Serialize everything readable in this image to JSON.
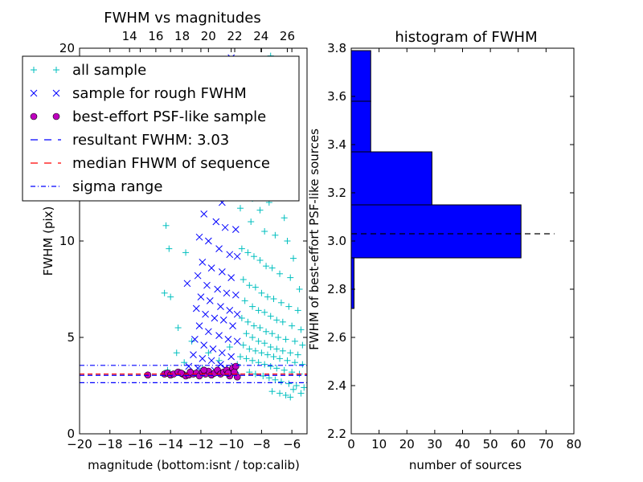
{
  "chart_data": [
    {
      "type": "scatter",
      "title": "FWHM vs magnitudes",
      "xlabel": "magnitude (bottom:isnt / top:calib)",
      "ylabel": "FWHM (pix)",
      "xlim": [
        -20,
        -5
      ],
      "ylim": [
        0,
        20
      ],
      "x_ticks": [
        -20,
        -18,
        -16,
        -14,
        -12,
        -10,
        -8,
        -6
      ],
      "x_tick_labels": [
        "−20",
        "−18",
        "−16",
        "−14",
        "−12",
        "−10",
        "−8",
        "−6"
      ],
      "y_ticks": [
        0,
        5,
        10,
        20
      ],
      "y_tick_labels": [
        "0",
        "5",
        "10",
        "20"
      ],
      "top_axis": {
        "ticks": [
          14,
          16,
          18,
          20,
          22,
          24,
          26
        ],
        "tick_labels": [
          "14",
          "16",
          "18",
          "20",
          "22",
          "24",
          "26"
        ],
        "xlim": [
          10.2,
          27.5
        ]
      },
      "legend": {
        "placement": "upper-left",
        "entries": [
          {
            "label": "all sample",
            "marker": "+",
            "color": "#00bfbf"
          },
          {
            "label": "sample for rough FWHM",
            "marker": "x",
            "color": "#0000ff"
          },
          {
            "label": "best-effort PSF-like sample",
            "marker": "o",
            "color": "#bf00bf"
          },
          {
            "label": "resultant FWHM: 3.03",
            "marker": "dashed-line",
            "color": "#0000ff"
          },
          {
            "label": "median FHWM of sequence",
            "marker": "dashed-line",
            "color": "#ff0000"
          },
          {
            "label": "sigma range",
            "marker": "dashdot-line",
            "color": "#0000ff"
          }
        ]
      },
      "lines": [
        {
          "name": "resultant FWHM: 3.03",
          "y": 3.03,
          "style": "dashed",
          "color": "#0000ff"
        },
        {
          "name": "median FHWM of sequence",
          "y": 3.1,
          "style": "dashed",
          "color": "#ff0000"
        },
        {
          "name": "sigma range",
          "y": 3.55,
          "style": "dashdot",
          "color": "#0000ff"
        },
        {
          "name": "sigma range",
          "y": 2.65,
          "style": "dashdot",
          "color": "#0000ff"
        }
      ],
      "series": [
        {
          "name": "all sample",
          "marker": "+",
          "color": "#00bfbf",
          "points": [
            [
              -14.3,
              10.8
            ],
            [
              -14.1,
              9.6
            ],
            [
              -14.4,
              7.3
            ],
            [
              -14.0,
              7.1
            ],
            [
              -13.5,
              5.5
            ],
            [
              -13.6,
              4.2
            ],
            [
              -13.0,
              9.4
            ],
            [
              -12.6,
              4.8
            ],
            [
              -14.2,
              3.3
            ],
            [
              -13.1,
              3.7
            ],
            [
              -11.9,
              3.4
            ],
            [
              -11.5,
              4.2
            ],
            [
              -10.8,
              3.8
            ],
            [
              -10.1,
              4.5
            ],
            [
              -9.6,
              3.6
            ],
            [
              -9.1,
              19.0
            ],
            [
              -8.7,
              18.4
            ],
            [
              -8.3,
              17.4
            ],
            [
              -7.4,
              19.6
            ],
            [
              -7.0,
              20.2
            ],
            [
              -6.6,
              19.0
            ],
            [
              -7.9,
              16.0
            ],
            [
              -9.0,
              13.9
            ],
            [
              -8.2,
              13.0
            ],
            [
              -6.9,
              12.6
            ],
            [
              -9.4,
              11.7
            ],
            [
              -8.7,
              11.0
            ],
            [
              -7.8,
              10.5
            ],
            [
              -7.1,
              10.3
            ],
            [
              -6.3,
              10.0
            ],
            [
              -9.3,
              9.6
            ],
            [
              -8.9,
              9.4
            ],
            [
              -8.5,
              9.2
            ],
            [
              -8.1,
              9.0
            ],
            [
              -7.7,
              8.7
            ],
            [
              -7.3,
              8.6
            ],
            [
              -6.8,
              8.3
            ],
            [
              -6.1,
              8.1
            ],
            [
              -9.2,
              8.0
            ],
            [
              -8.8,
              7.7
            ],
            [
              -8.4,
              7.6
            ],
            [
              -8.0,
              7.3
            ],
            [
              -7.6,
              7.1
            ],
            [
              -7.2,
              7.0
            ],
            [
              -6.7,
              6.8
            ],
            [
              -6.2,
              6.6
            ],
            [
              -5.6,
              6.4
            ],
            [
              -9.1,
              6.9
            ],
            [
              -8.6,
              6.6
            ],
            [
              -8.2,
              6.4
            ],
            [
              -7.8,
              6.3
            ],
            [
              -7.4,
              6.1
            ],
            [
              -7.0,
              5.9
            ],
            [
              -6.6,
              5.8
            ],
            [
              -6.0,
              5.6
            ],
            [
              -5.4,
              5.4
            ],
            [
              -9.3,
              6.0
            ],
            [
              -8.9,
              5.8
            ],
            [
              -8.5,
              5.6
            ],
            [
              -8.1,
              5.5
            ],
            [
              -7.7,
              5.3
            ],
            [
              -7.3,
              5.2
            ],
            [
              -6.9,
              5.0
            ],
            [
              -6.4,
              4.9
            ],
            [
              -5.8,
              4.8
            ],
            [
              -5.3,
              4.6
            ],
            [
              -9.0,
              5.2
            ],
            [
              -8.6,
              5.0
            ],
            [
              -8.2,
              4.8
            ],
            [
              -7.8,
              4.7
            ],
            [
              -7.4,
              4.5
            ],
            [
              -7.0,
              4.4
            ],
            [
              -6.6,
              4.3
            ],
            [
              -6.1,
              4.2
            ],
            [
              -5.6,
              4.1
            ],
            [
              -9.2,
              4.6
            ],
            [
              -8.8,
              4.4
            ],
            [
              -8.4,
              4.3
            ],
            [
              -8.0,
              4.2
            ],
            [
              -7.6,
              4.1
            ],
            [
              -7.2,
              4.0
            ],
            [
              -6.8,
              3.9
            ],
            [
              -6.3,
              3.8
            ],
            [
              -5.8,
              3.7
            ],
            [
              -5.3,
              3.6
            ],
            [
              -9.4,
              4.0
            ],
            [
              -9.0,
              3.9
            ],
            [
              -8.6,
              3.8
            ],
            [
              -8.2,
              3.7
            ],
            [
              -7.8,
              3.6
            ],
            [
              -7.4,
              3.5
            ],
            [
              -7.0,
              3.4
            ],
            [
              -6.5,
              3.3
            ],
            [
              -6.0,
              3.2
            ],
            [
              -5.5,
              3.1
            ],
            [
              -8.8,
              3.2
            ],
            [
              -8.4,
              3.1
            ],
            [
              -7.9,
              3.0
            ],
            [
              -7.5,
              2.9
            ],
            [
              -7.1,
              2.8
            ],
            [
              -6.7,
              2.7
            ],
            [
              -6.2,
              2.6
            ],
            [
              -5.7,
              2.5
            ],
            [
              -5.2,
              2.4
            ],
            [
              -7.3,
              2.2
            ],
            [
              -6.8,
              2.1
            ],
            [
              -6.4,
              2.0
            ],
            [
              -5.9,
              2.3
            ],
            [
              -5.4,
              2.1
            ],
            [
              -6.1,
              1.9
            ],
            [
              -8.6,
              12.2
            ],
            [
              -8.1,
              11.6
            ],
            [
              -7.5,
              12.0
            ],
            [
              -6.5,
              11.2
            ],
            [
              -5.9,
              9.1
            ],
            [
              -5.5,
              7.5
            ],
            [
              -9.4,
              14.6
            ],
            [
              -7.7,
              14.2
            ],
            [
              -6.3,
              13.5
            ],
            [
              -8.9,
              16.6
            ]
          ]
        },
        {
          "name": "sample for rough FWHM",
          "marker": "x",
          "color": "#0000ff",
          "points": [
            [
              -11.6,
              17.2
            ],
            [
              -11.3,
              17.0
            ],
            [
              -11.0,
              16.9
            ],
            [
              -11.1,
              15.6
            ],
            [
              -10.3,
              19.2
            ],
            [
              -10.0,
              19.5
            ],
            [
              -9.8,
              18.1
            ],
            [
              -10.5,
              16.3
            ],
            [
              -9.9,
              15.9
            ],
            [
              -11.4,
              14.1
            ],
            [
              -10.7,
              13.6
            ],
            [
              -10.2,
              14.4
            ],
            [
              -12.0,
              12.9
            ],
            [
              -11.2,
              12.4
            ],
            [
              -10.6,
              12.0
            ],
            [
              -10.0,
              12.8
            ],
            [
              -11.8,
              11.4
            ],
            [
              -11.0,
              11.0
            ],
            [
              -10.4,
              10.7
            ],
            [
              -9.7,
              10.6
            ],
            [
              -12.1,
              10.2
            ],
            [
              -11.5,
              10.0
            ],
            [
              -10.8,
              9.6
            ],
            [
              -10.1,
              9.3
            ],
            [
              -9.6,
              9.2
            ],
            [
              -11.9,
              8.9
            ],
            [
              -11.3,
              8.6
            ],
            [
              -10.6,
              8.4
            ],
            [
              -10.0,
              8.1
            ],
            [
              -12.2,
              8.2
            ],
            [
              -12.9,
              7.8
            ],
            [
              -11.6,
              7.7
            ],
            [
              -10.9,
              7.5
            ],
            [
              -10.3,
              7.3
            ],
            [
              -9.7,
              7.2
            ],
            [
              -12.0,
              7.1
            ],
            [
              -11.4,
              6.9
            ],
            [
              -10.7,
              6.6
            ],
            [
              -10.1,
              6.4
            ],
            [
              -9.6,
              6.2
            ],
            [
              -12.3,
              6.5
            ],
            [
              -11.7,
              6.2
            ],
            [
              -11.1,
              6.0
            ],
            [
              -10.5,
              5.9
            ],
            [
              -9.9,
              5.6
            ],
            [
              -12.1,
              5.6
            ],
            [
              -11.5,
              5.3
            ],
            [
              -10.8,
              5.1
            ],
            [
              -10.2,
              4.9
            ],
            [
              -9.6,
              4.8
            ],
            [
              -12.4,
              4.9
            ],
            [
              -11.8,
              4.6
            ],
            [
              -11.2,
              4.4
            ],
            [
              -10.6,
              4.2
            ],
            [
              -10.0,
              4.0
            ],
            [
              -12.5,
              4.1
            ],
            [
              -11.9,
              3.9
            ],
            [
              -11.3,
              3.8
            ],
            [
              -10.7,
              3.6
            ],
            [
              -9.8,
              3.5
            ],
            [
              -12.2,
              3.4
            ],
            [
              -11.1,
              3.3
            ],
            [
              -10.4,
              3.4
            ],
            [
              -9.7,
              3.3
            ],
            [
              -12.8,
              3.5
            ]
          ]
        },
        {
          "name": "best-effort PSF-like sample",
          "marker": "o",
          "color": "#bf00bf",
          "points": [
            [
              -15.5,
              3.05
            ],
            [
              -14.4,
              3.1
            ],
            [
              -14.2,
              3.15
            ],
            [
              -14.0,
              3.05
            ],
            [
              -13.8,
              3.1
            ],
            [
              -13.5,
              3.2
            ],
            [
              -13.2,
              3.1
            ],
            [
              -13.0,
              3.0
            ],
            [
              -12.8,
              3.05
            ],
            [
              -12.5,
              3.1
            ],
            [
              -12.3,
              3.15
            ],
            [
              -12.1,
              3.0
            ],
            [
              -11.9,
              3.2
            ],
            [
              -11.7,
              3.1
            ],
            [
              -11.5,
              3.25
            ],
            [
              -11.3,
              3.05
            ],
            [
              -11.1,
              3.15
            ],
            [
              -10.9,
              3.3
            ],
            [
              -10.7,
              3.1
            ],
            [
              -10.5,
              3.2
            ],
            [
              -10.3,
              3.3
            ],
            [
              -10.1,
              3.0
            ],
            [
              -9.9,
              3.4
            ],
            [
              -9.7,
              3.5
            ],
            [
              -9.6,
              2.95
            ],
            [
              -11.8,
              3.3
            ],
            [
              -12.7,
              3.2
            ],
            [
              -10.2,
              3.15
            ],
            [
              -9.8,
              3.2
            ],
            [
              -13.3,
              3.15
            ]
          ]
        }
      ]
    },
    {
      "type": "bar",
      "orientation": "horizontal",
      "title": "histogram of FWHM",
      "xlabel": "number of sources",
      "ylabel": "FWHM of best-effort PSF-like sources",
      "xlim": [
        0,
        80
      ],
      "ylim": [
        2.2,
        3.8
      ],
      "x_ticks": [
        0,
        10,
        20,
        30,
        40,
        50,
        60,
        70,
        80
      ],
      "y_ticks": [
        2.2,
        2.4,
        2.6,
        2.8,
        3.0,
        3.2,
        3.4,
        3.6,
        3.8
      ],
      "y_tick_labels": [
        "2.2",
        "2.4",
        "2.6",
        "2.8",
        "3.0",
        "3.2",
        "3.4",
        "3.6",
        "3.8"
      ],
      "color": "#0000ff",
      "bins": [
        {
          "y0": 2.72,
          "y1": 2.93,
          "count": 1
        },
        {
          "y0": 2.93,
          "y1": 3.15,
          "count": 61
        },
        {
          "y0": 3.15,
          "y1": 3.37,
          "count": 29
        },
        {
          "y0": 3.37,
          "y1": 3.58,
          "count": 7
        },
        {
          "y0": 3.58,
          "y1": 3.79,
          "count": 7
        }
      ],
      "reference_line": {
        "y": 3.03,
        "x_range": [
          0,
          73
        ],
        "style": "dashed",
        "color": "#000000"
      }
    }
  ]
}
